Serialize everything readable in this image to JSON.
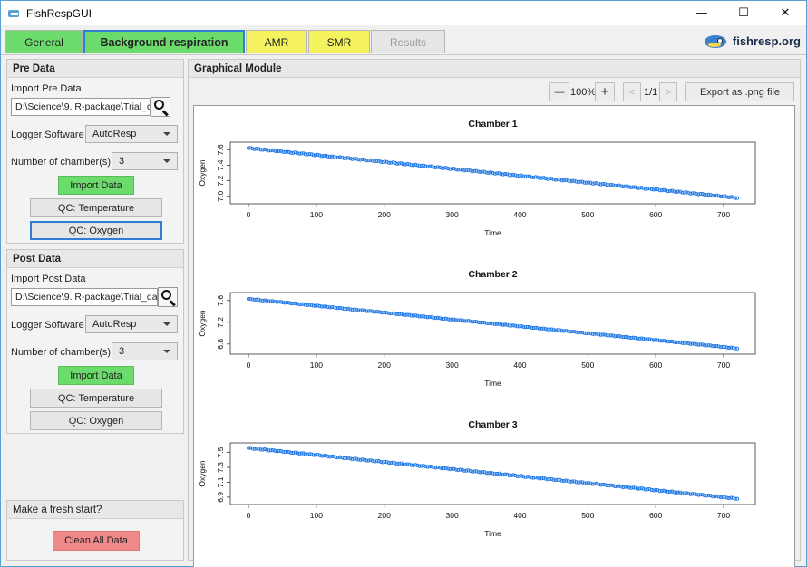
{
  "window": {
    "title": "FishRespGUI",
    "minimize_glyph": "—",
    "maximize_glyph": "☐",
    "close_glyph": "✕"
  },
  "tabs": [
    {
      "label": "General"
    },
    {
      "label": "Background respiration"
    },
    {
      "label": "AMR"
    },
    {
      "label": "SMR"
    },
    {
      "label": "Results"
    }
  ],
  "logo": {
    "text": "fishresp.org"
  },
  "pre_data": {
    "header": "Pre Data",
    "import_label": "Import Pre Data",
    "path_value": "D:\\Science\\9. R-package\\Trial_c",
    "logger_label": "Logger Software",
    "logger_value": "AutoResp",
    "chambers_label": "Number of chamber(s)",
    "chambers_value": "3",
    "import_button": "Import Data",
    "qc_temp_button": "QC: Temperature",
    "qc_oxygen_button": "QC: Oxygen"
  },
  "post_data": {
    "header": "Post Data",
    "import_label": "Import Post Data",
    "path_value": "D:\\Science\\9. R-package\\Trial_da",
    "logger_label": "Logger Software",
    "logger_value": "AutoResp",
    "chambers_label": "Number of chamber(s)",
    "chambers_value": "3",
    "import_button": "Import Data",
    "qc_temp_button": "QC: Temperature",
    "qc_oxygen_button": "QC: Oxygen"
  },
  "fresh_start": {
    "header": "Make a fresh start?",
    "clear_button": "Clean All Data"
  },
  "graphical": {
    "header": "Graphical Module",
    "zoom_out": "—",
    "zoom_level": "100%",
    "zoom_in": "+",
    "prev_page": "<",
    "page_indicator": "1/1",
    "next_page": ">",
    "export_button": "Export as .png file"
  },
  "chart_data": [
    {
      "type": "scatter",
      "title": "Chamber 1",
      "xlabel": "Time",
      "ylabel": "Oxygen",
      "xlim": [
        0,
        720
      ],
      "ylim": [
        6.95,
        7.65
      ],
      "xticks": [
        0,
        100,
        200,
        300,
        400,
        500,
        600,
        700
      ],
      "yticks": [
        "7.0",
        "7.2",
        "7.4",
        "7.6"
      ],
      "series": [
        {
          "x_start": 0,
          "y_start": 7.62,
          "x_end": 720,
          "y_end": 6.98,
          "color": "#1f78e6"
        }
      ]
    },
    {
      "type": "scatter",
      "title": "Chamber 2",
      "xlabel": "Time",
      "ylabel": "Oxygen",
      "xlim": [
        0,
        720
      ],
      "ylim": [
        6.68,
        7.68
      ],
      "xticks": [
        0,
        100,
        200,
        300,
        400,
        500,
        600,
        700
      ],
      "yticks": [
        "6.8",
        "7.2",
        "7.6"
      ],
      "series": [
        {
          "x_start": 0,
          "y_start": 7.63,
          "x_end": 720,
          "y_end": 6.72,
          "color": "#1f78e6"
        }
      ]
    },
    {
      "type": "scatter",
      "title": "Chamber 3",
      "xlabel": "Time",
      "ylabel": "Oxygen",
      "xlim": [
        0,
        720
      ],
      "ylim": [
        6.85,
        7.58
      ],
      "xticks": [
        0,
        100,
        200,
        300,
        400,
        500,
        600,
        700
      ],
      "yticks": [
        "6.9",
        "7.1",
        "7.3",
        "7.5"
      ],
      "series": [
        {
          "x_start": 0,
          "y_start": 7.56,
          "x_end": 720,
          "y_end": 6.88,
          "color": "#1f78e6"
        }
      ]
    }
  ]
}
